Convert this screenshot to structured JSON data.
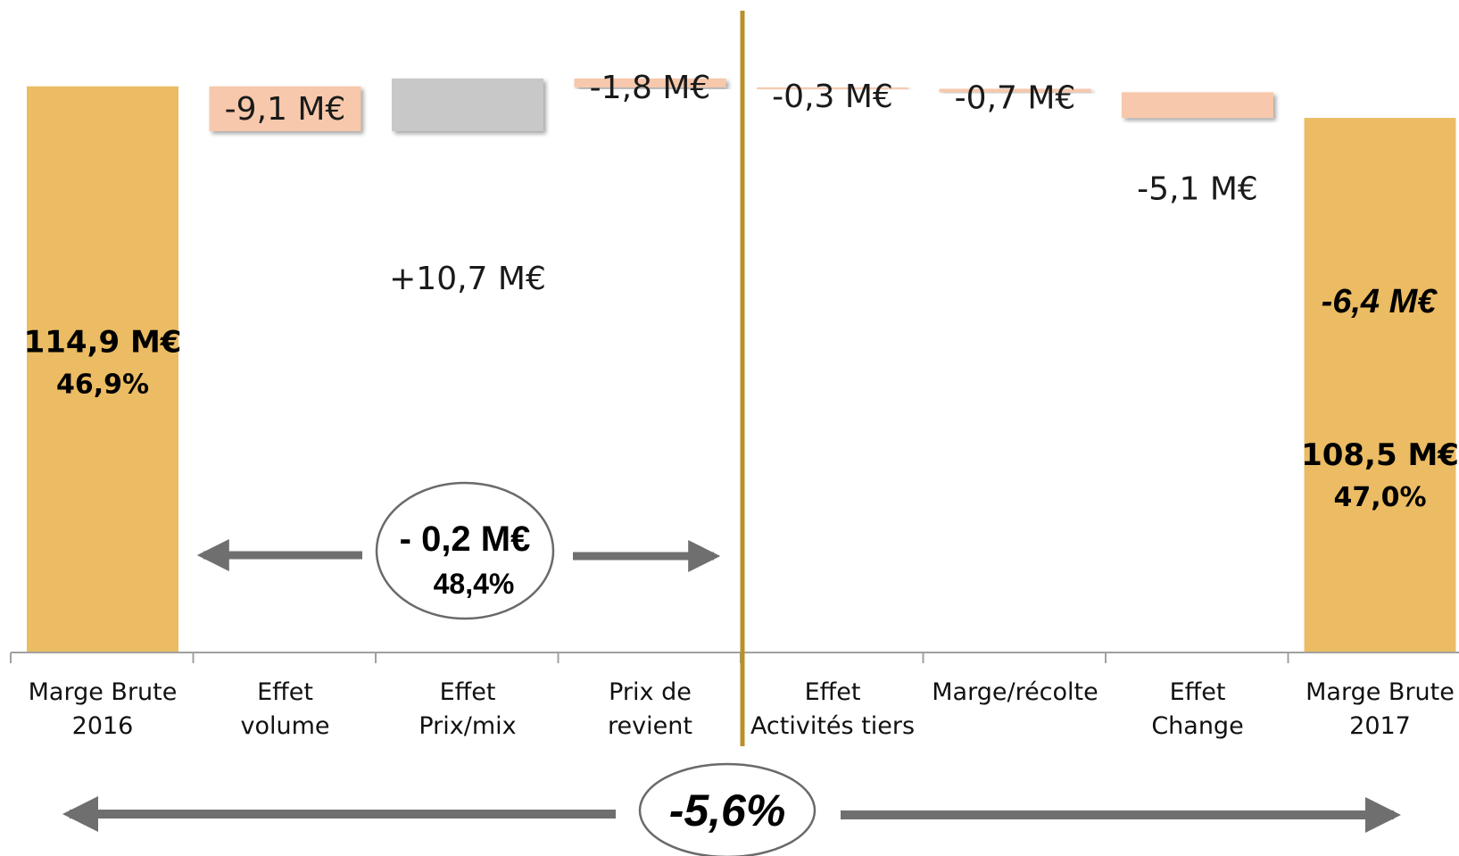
{
  "chart_data": {
    "type": "waterfall",
    "categories": [
      [
        "Marge Brute",
        "2016"
      ],
      [
        "Effet",
        "volume"
      ],
      [
        "Effet",
        "Prix/mix"
      ],
      [
        "Prix de",
        "revient"
      ],
      [
        "Effet",
        "Activités tiers"
      ],
      [
        "Marge/récolte"
      ],
      [
        "Effet",
        "Change"
      ],
      [
        "Marge Brute",
        "2017"
      ]
    ],
    "bars": [
      {
        "kind": "total",
        "start": 0,
        "end": 114.9,
        "label": "114,9 M€",
        "sublabel": "46,9%"
      },
      {
        "kind": "delta",
        "start": 114.9,
        "end": 105.8,
        "label": "-9,1 M€"
      },
      {
        "kind": "delta",
        "start": 105.8,
        "end": 116.5,
        "label": "+10,7 M€"
      },
      {
        "kind": "delta",
        "start": 116.5,
        "end": 114.7,
        "label": "-1,8 M€"
      },
      {
        "kind": "delta",
        "start": 114.7,
        "end": 114.4,
        "label": "-0,3 M€"
      },
      {
        "kind": "delta",
        "start": 114.4,
        "end": 113.7,
        "label": "-0,7 M€"
      },
      {
        "kind": "delta",
        "start": 113.7,
        "end": 108.5,
        "label": "-5,1 M€"
      },
      {
        "kind": "total",
        "start": 0,
        "end": 108.5,
        "label": "108,5 M€",
        "sublabel": "47,0%"
      }
    ],
    "annotations": {
      "final_change": "-6,4 M€",
      "subtotal_oval": {
        "main": "- 0,2 M€",
        "sub": "48,4%"
      },
      "total_oval": "-5,6%"
    },
    "colors": {
      "total": "#ebbc63",
      "negative": "#f7c8ab",
      "positive": "#c8c8c8",
      "separator": "#b8902a",
      "arrow": "#6f6f6f",
      "axis": "#a0a0a0"
    }
  }
}
